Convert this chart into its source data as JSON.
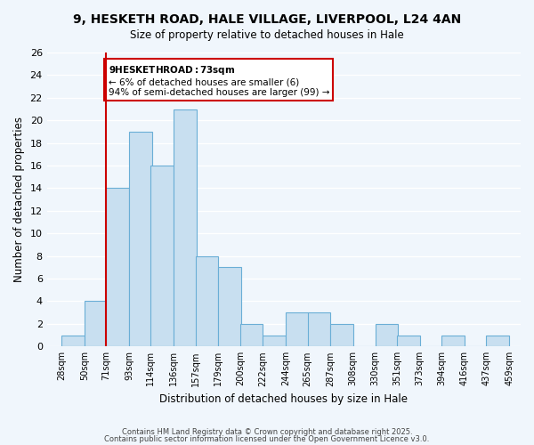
{
  "title_line1": "9, HESKETH ROAD, HALE VILLAGE, LIVERPOOL, L24 4AN",
  "title_line2": "Size of property relative to detached houses in Hale",
  "xlabel": "Distribution of detached houses by size in Hale",
  "ylabel": "Number of detached properties",
  "bar_left_edges": [
    28,
    50,
    71,
    93,
    114,
    136,
    157,
    179,
    200,
    222,
    244,
    265,
    287,
    308,
    330,
    351,
    373,
    394,
    416,
    437
  ],
  "bar_heights": [
    1,
    4,
    14,
    19,
    16,
    21,
    8,
    7,
    2,
    1,
    3,
    3,
    2,
    0,
    2,
    1,
    0,
    1,
    0,
    1
  ],
  "bin_width": 22,
  "tick_labels": [
    "28sqm",
    "50sqm",
    "71sqm",
    "93sqm",
    "114sqm",
    "136sqm",
    "157sqm",
    "179sqm",
    "200sqm",
    "222sqm",
    "244sqm",
    "265sqm",
    "287sqm",
    "308sqm",
    "330sqm",
    "351sqm",
    "373sqm",
    "394sqm",
    "416sqm",
    "437sqm",
    "459sqm"
  ],
  "tick_positions": [
    28,
    50,
    71,
    93,
    114,
    136,
    157,
    179,
    200,
    222,
    244,
    265,
    287,
    308,
    330,
    351,
    373,
    394,
    416,
    437,
    459
  ],
  "bar_color": "#c8dff0",
  "bar_edge_color": "#6aaed6",
  "vline_x": 71,
  "vline_color": "#cc0000",
  "annotation_title": "9 HESKETH ROAD: 73sqm",
  "annotation_line1": "← 6% of detached houses are smaller (6)",
  "annotation_line2": "94% of semi-detached houses are larger (99) →",
  "annotation_box_edge": "#cc0000",
  "ylim": [
    0,
    26
  ],
  "yticks": [
    0,
    2,
    4,
    6,
    8,
    10,
    12,
    14,
    16,
    18,
    20,
    22,
    24,
    26
  ],
  "footer_line1": "Contains HM Land Registry data © Crown copyright and database right 2025.",
  "footer_line2": "Contains public sector information licensed under the Open Government Licence v3.0.",
  "background_color": "#f0f6fc",
  "grid_color": "#ffffff"
}
